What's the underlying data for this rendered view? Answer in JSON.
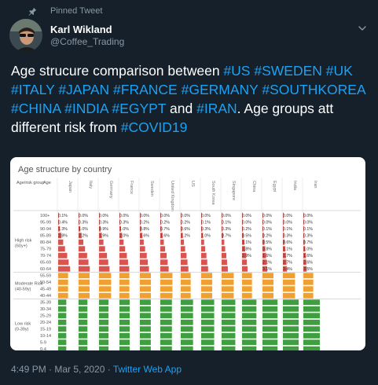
{
  "pinned_label": "Pinned Tweet",
  "user": {
    "name": "Karl Wikland",
    "handle": "@Coffee_Trading"
  },
  "tweet_segments": [
    {
      "t": "Age strucure comparison between ",
      "h": false
    },
    {
      "t": "#US",
      "h": true
    },
    {
      "t": " ",
      "h": false
    },
    {
      "t": "#SWEDEN",
      "h": true
    },
    {
      "t": " ",
      "h": false
    },
    {
      "t": "#UK",
      "h": true
    },
    {
      "t": " ",
      "h": false
    },
    {
      "t": "#ITALY",
      "h": true
    },
    {
      "t": " ",
      "h": false
    },
    {
      "t": "#JAPAN",
      "h": true
    },
    {
      "t": " ",
      "h": false
    },
    {
      "t": "#FRANCE",
      "h": true
    },
    {
      "t": " ",
      "h": false
    },
    {
      "t": "#GERMANY",
      "h": true
    },
    {
      "t": " ",
      "h": false
    },
    {
      "t": "#SOUTHKOREA",
      "h": true
    },
    {
      "t": " ",
      "h": false
    },
    {
      "t": "#CHINA",
      "h": true
    },
    {
      "t": " ",
      "h": false
    },
    {
      "t": "#INDIA",
      "h": true
    },
    {
      "t": " ",
      "h": false
    },
    {
      "t": "#EGYPT",
      "h": true
    },
    {
      "t": " and ",
      "h": false
    },
    {
      "t": "#IRAN",
      "h": true
    },
    {
      "t": ". Age groups att different risk from ",
      "h": false
    },
    {
      "t": "#COVID19",
      "h": true
    }
  ],
  "footer": {
    "time": "4:49 PM · Mar 5, 2020 · ",
    "source": "Twitter Web App"
  },
  "colors": {
    "high": "#d9534f",
    "moderate": "#f0a030",
    "low": "#3f9e3f"
  },
  "chart_data": {
    "type": "table",
    "title": "Age structure by country",
    "col_headers": [
      "Age/risk group",
      "Age"
    ],
    "countries": [
      "Japan",
      "Italy",
      "Germany",
      "France",
      "Sweden",
      "United Kingdom",
      "US",
      "South Korea",
      "Singapore",
      "China",
      "Egypt",
      "India",
      "Iran"
    ],
    "groups": [
      {
        "label": "High risk (60y+)",
        "risk": "high"
      },
      {
        "label": "Moderate Risk (40-59y)",
        "risk": "moderate"
      },
      {
        "label": "Low risk (0-39y)",
        "risk": "low"
      }
    ],
    "age_bands": [
      "100+",
      "95-99",
      "90-94",
      "85-89",
      "80-84",
      "75-79",
      "70-74",
      "65-69",
      "60-64",
      "55-59",
      "50-54",
      "45-49",
      "40-44",
      "35-39",
      "30-34",
      "25-29",
      "20-24",
      "15-19",
      "10-14",
      "5-9",
      "0-4"
    ],
    "band_group": [
      "high",
      "high",
      "high",
      "high",
      "high",
      "high",
      "high",
      "high",
      "high",
      "moderate",
      "moderate",
      "moderate",
      "moderate",
      "low",
      "low",
      "low",
      "low",
      "low",
      "low",
      "low",
      "low"
    ],
    "visible_values": {
      "100+": [
        "0.1%",
        "0.0%",
        "0.0%",
        "0.0%",
        "0.0%",
        "0.0%",
        "0.0%",
        "0.0%",
        "0.0%",
        "0.0%",
        "0.0%",
        "0.0%",
        "0.0%"
      ],
      "95-99": [
        "0.4%",
        "0.3%",
        "0.3%",
        "0.3%",
        "0.2%",
        "0.2%",
        "0.2%",
        "0.1%",
        "0.1%",
        "0.0%",
        "0.0%",
        "0.0%",
        "0.0%"
      ],
      "90-94": [
        "1.3%",
        "1.0%",
        "0.9%",
        "1.0%",
        "0.8%",
        "0.7%",
        "0.6%",
        "0.3%",
        "0.3%",
        "0.2%",
        "0.1%",
        "0.1%",
        "0.1%"
      ],
      "85-89": [
        "2.8%",
        "2.2%",
        "1.9%",
        "2.0%",
        "1.6%",
        "1.6%",
        "1.2%",
        "1.0%",
        "0.7%",
        "0.5%",
        "0.2%",
        "0.3%",
        "0.3%"
      ],
      "80-84": [
        "",
        "",
        "",
        "",
        "",
        "",
        "",
        "",
        "",
        "1.1%",
        "0.5%",
        "0.6%",
        "0.7%"
      ],
      "75-79": [
        "",
        "",
        "",
        "",
        "",
        "",
        "",
        "",
        "",
        "1.8%",
        "0.8%",
        "1.1%",
        "1.0%"
      ],
      "70-74": [
        "",
        "",
        "",
        "",
        "",
        "",
        "",
        "",
        "",
        "2.9%",
        "1.6%",
        "1.7%",
        "1.6%"
      ],
      "65-69": [
        "",
        "",
        "",
        "",
        "",
        "",
        "",
        "",
        "",
        "",
        "2.1%",
        "2.7%",
        "2.6%"
      ],
      "60-64": [
        "",
        "",
        "",
        "",
        "",
        "",
        "",
        "",
        "",
        "",
        "3.1%",
        "3.4%",
        "3.5%"
      ]
    }
  }
}
